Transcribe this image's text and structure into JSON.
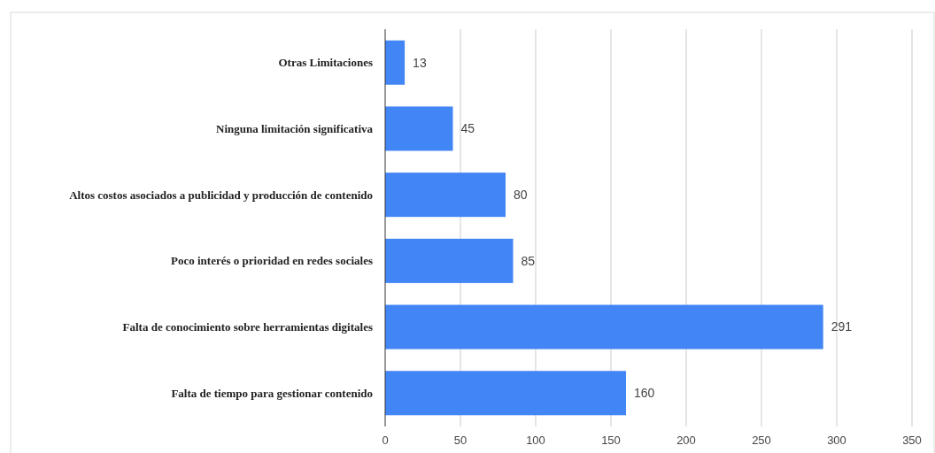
{
  "chart_data": {
    "type": "bar",
    "orientation": "horizontal",
    "categories": [
      "Otras Limitaciones",
      "Ninguna limitación significativa",
      "Altos costos asociados a publicidad y producción de contenido",
      "Poco interés o prioridad en redes sociales",
      "Falta de conocimiento sobre herramientas digitales",
      "Falta de tiempo para gestionar contenido"
    ],
    "values": [
      13,
      45,
      80,
      85,
      291,
      160
    ],
    "color": "#4285f4",
    "xlim": [
      0,
      350
    ],
    "xticks": [
      0,
      50,
      100,
      150,
      200,
      250,
      300,
      350
    ],
    "grid": "x",
    "data_labels": true
  }
}
